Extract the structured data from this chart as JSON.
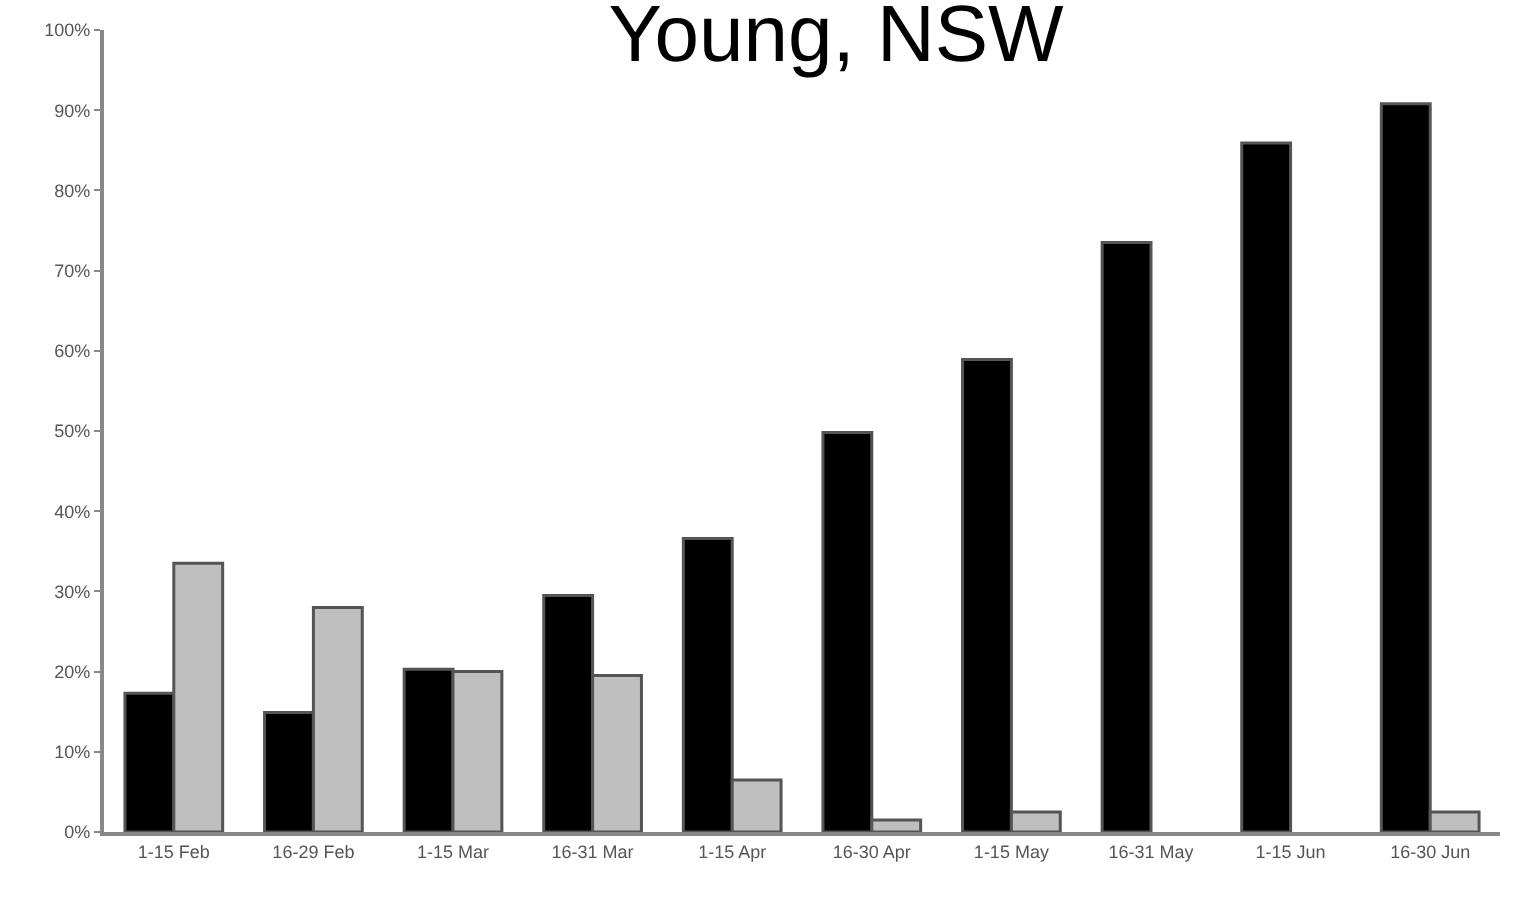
{
  "chart_data": {
    "type": "bar",
    "title": "Young, NSW",
    "categories": [
      "1-15 Feb",
      "16-29 Feb",
      "1-15 Mar",
      "16-31 Mar",
      "1-15 Apr",
      "16-30 Apr",
      "1-15 May",
      "16-31 May",
      "1-15 Jun",
      "16-30 Jun"
    ],
    "series": [
      {
        "color": "#000000",
        "values": [
          17.3,
          14.9,
          20.3,
          29.5,
          36.6,
          49.8,
          58.9,
          73.5,
          85.9,
          90.8
        ]
      },
      {
        "color": "#bfbfbf",
        "values": [
          33.5,
          28,
          20,
          19.5,
          6.5,
          1.5,
          2.5,
          null,
          null,
          2.5
        ]
      }
    ],
    "ylim": [
      0,
      100
    ],
    "yticks": [
      {
        "value": 0,
        "label": "0%"
      },
      {
        "value": 10,
        "label": "10%"
      },
      {
        "value": 20,
        "label": "20%"
      },
      {
        "value": 30,
        "label": "30%"
      },
      {
        "value": 40,
        "label": "40%"
      },
      {
        "value": 50,
        "label": "50%"
      },
      {
        "value": 60,
        "label": "60%"
      },
      {
        "value": 70,
        "label": "70%"
      },
      {
        "value": 80,
        "label": "80%"
      },
      {
        "value": 90,
        "label": "90%"
      },
      {
        "value": 100,
        "label": "100%"
      }
    ]
  }
}
